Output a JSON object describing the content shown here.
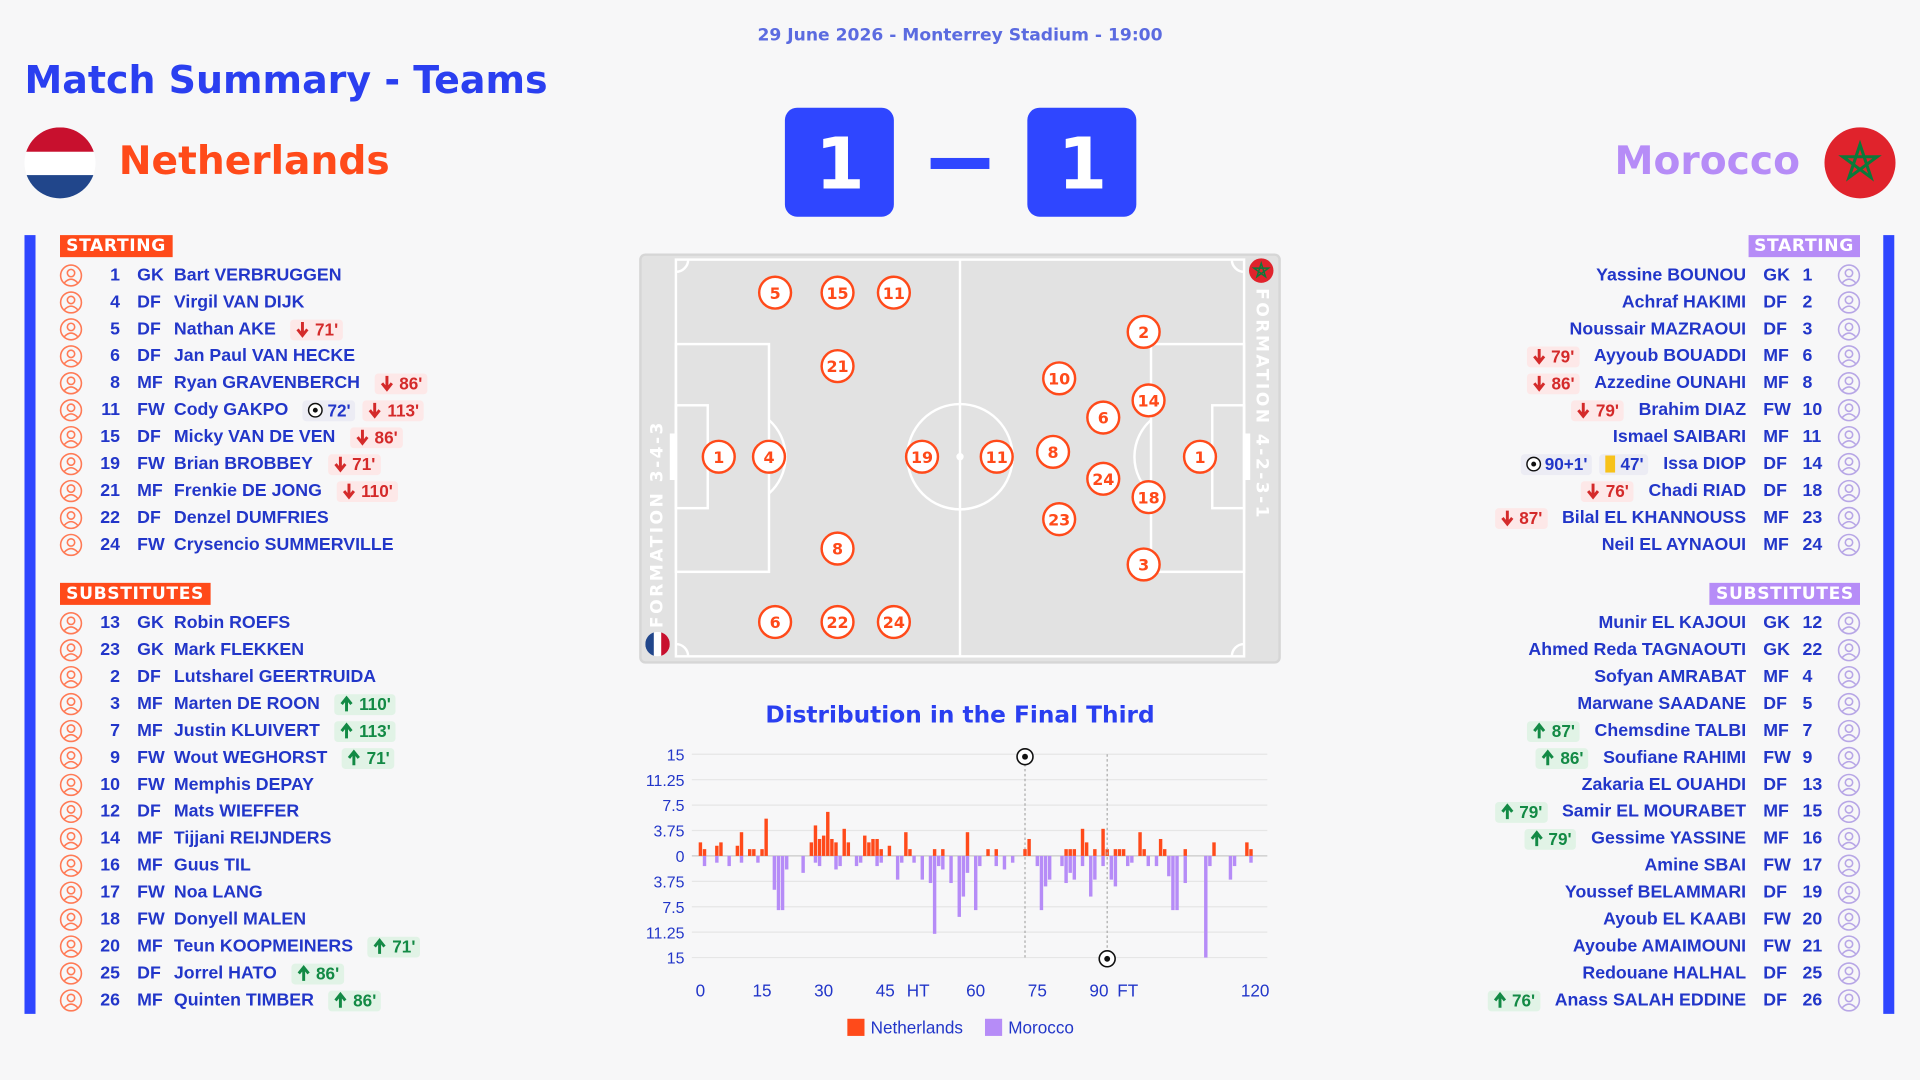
{
  "header": {
    "date": "29 June 2026 - Monterrey Stadium - 19:00",
    "title": "Match Summary - Teams"
  },
  "score": {
    "home": 1,
    "away": 1
  },
  "teams": [
    {
      "name": "Netherlands",
      "color": "#ff4a1a",
      "starting_label": "STARTING",
      "substitutes_label": "SUBSTITUTES",
      "formation": "FORMATION 3-4-3",
      "pitch": [
        1,
        4,
        5,
        15,
        11,
        21,
        19,
        8,
        6,
        22,
        24
      ],
      "starting": [
        {
          "number": 1,
          "position": "GK",
          "name": "Bart VERBRUGGEN",
          "events": []
        },
        {
          "number": 4,
          "position": "DF",
          "name": "Virgil VAN DIJK",
          "events": []
        },
        {
          "number": 5,
          "position": "DF",
          "name": "Nathan AKE",
          "events": [
            {
              "type": "off",
              "minute": "71'"
            }
          ]
        },
        {
          "number": 6,
          "position": "DF",
          "name": "Jan Paul VAN HECKE",
          "events": []
        },
        {
          "number": 8,
          "position": "MF",
          "name": "Ryan GRAVENBERCH",
          "events": [
            {
              "type": "off",
              "minute": "86'"
            }
          ]
        },
        {
          "number": 11,
          "position": "FW",
          "name": "Cody GAKPO",
          "events": [
            {
              "type": "goal",
              "minute": "72'"
            },
            {
              "type": "off",
              "minute": "113'"
            }
          ]
        },
        {
          "number": 15,
          "position": "DF",
          "name": "Micky VAN DE VEN",
          "events": [
            {
              "type": "off",
              "minute": "86'"
            }
          ]
        },
        {
          "number": 19,
          "position": "FW",
          "name": "Brian BROBBEY",
          "events": [
            {
              "type": "off",
              "minute": "71'"
            }
          ]
        },
        {
          "number": 21,
          "position": "MF",
          "name": "Frenkie DE JONG",
          "events": [
            {
              "type": "off",
              "minute": "110'"
            }
          ]
        },
        {
          "number": 22,
          "position": "DF",
          "name": "Denzel DUMFRIES",
          "events": []
        },
        {
          "number": 24,
          "position": "FW",
          "name": "Crysencio SUMMERVILLE",
          "events": []
        }
      ],
      "substitutes": [
        {
          "number": 13,
          "position": "GK",
          "name": "Robin ROEFS",
          "events": []
        },
        {
          "number": 23,
          "position": "GK",
          "name": "Mark FLEKKEN",
          "events": []
        },
        {
          "number": 2,
          "position": "DF",
          "name": "Lutsharel GEERTRUIDA",
          "events": []
        },
        {
          "number": 3,
          "position": "MF",
          "name": "Marten DE ROON",
          "events": [
            {
              "type": "on",
              "minute": "110'"
            }
          ]
        },
        {
          "number": 7,
          "position": "MF",
          "name": "Justin KLUIVERT",
          "events": [
            {
              "type": "on",
              "minute": "113'"
            }
          ]
        },
        {
          "number": 9,
          "position": "FW",
          "name": "Wout WEGHORST",
          "events": [
            {
              "type": "on",
              "minute": "71'"
            }
          ]
        },
        {
          "number": 10,
          "position": "FW",
          "name": "Memphis DEPAY",
          "events": []
        },
        {
          "number": 12,
          "position": "DF",
          "name": "Mats WIEFFER",
          "events": []
        },
        {
          "number": 14,
          "position": "MF",
          "name": "Tijjani REIJNDERS",
          "events": []
        },
        {
          "number": 16,
          "position": "MF",
          "name": "Guus TIL",
          "events": []
        },
        {
          "number": 17,
          "position": "FW",
          "name": "Noa LANG",
          "events": []
        },
        {
          "number": 18,
          "position": "FW",
          "name": "Donyell MALEN",
          "events": []
        },
        {
          "number": 20,
          "position": "MF",
          "name": "Teun KOOPMEINERS",
          "events": [
            {
              "type": "on",
              "minute": "71'"
            }
          ]
        },
        {
          "number": 25,
          "position": "DF",
          "name": "Jorrel HATO",
          "events": [
            {
              "type": "on",
              "minute": "86'"
            }
          ]
        },
        {
          "number": 26,
          "position": "MF",
          "name": "Quinten TIMBER",
          "events": [
            {
              "type": "on",
              "minute": "86'"
            }
          ]
        }
      ]
    },
    {
      "name": "Morocco",
      "color": "#b68cf7",
      "starting_label": "STARTING",
      "substitutes_label": "SUBSTITUTES",
      "formation": "FORMATION 4-2-3-1",
      "pitch": [
        11,
        10,
        8,
        23,
        6,
        24,
        14,
        18,
        2,
        3,
        1
      ],
      "starting": [
        {
          "number": 1,
          "position": "GK",
          "name": "Yassine BOUNOU",
          "events": []
        },
        {
          "number": 2,
          "position": "DF",
          "name": "Achraf HAKIMI",
          "events": []
        },
        {
          "number": 3,
          "position": "DF",
          "name": "Noussair MAZRAOUI",
          "events": []
        },
        {
          "number": 6,
          "position": "MF",
          "name": "Ayyoub BOUADDI",
          "events": [
            {
              "type": "off",
              "minute": "79'"
            }
          ]
        },
        {
          "number": 8,
          "position": "MF",
          "name": "Azzedine OUNAHI",
          "events": [
            {
              "type": "off",
              "minute": "86'"
            }
          ]
        },
        {
          "number": 10,
          "position": "FW",
          "name": "Brahim DIAZ",
          "events": [
            {
              "type": "off",
              "minute": "79'"
            }
          ]
        },
        {
          "number": 11,
          "position": "MF",
          "name": "Ismael SAIBARI",
          "events": []
        },
        {
          "number": 14,
          "position": "DF",
          "name": "Issa DIOP",
          "events": [
            {
              "type": "goal",
              "minute": "90+1'"
            },
            {
              "type": "yellow_card",
              "minute": "47'"
            }
          ]
        },
        {
          "number": 18,
          "position": "DF",
          "name": "Chadi RIAD",
          "events": [
            {
              "type": "off",
              "minute": "76'"
            }
          ]
        },
        {
          "number": 23,
          "position": "MF",
          "name": "Bilal EL KHANNOUSS",
          "events": [
            {
              "type": "off",
              "minute": "87'"
            }
          ]
        },
        {
          "number": 24,
          "position": "MF",
          "name": "Neil EL AYNAOUI",
          "events": []
        }
      ],
      "substitutes": [
        {
          "number": 12,
          "position": "GK",
          "name": "Munir EL KAJOUI",
          "events": []
        },
        {
          "number": 22,
          "position": "GK",
          "name": "Ahmed Reda TAGNAOUTI",
          "events": []
        },
        {
          "number": 4,
          "position": "MF",
          "name": "Sofyan AMRABAT",
          "events": []
        },
        {
          "number": 5,
          "position": "DF",
          "name": "Marwane SAADANE",
          "events": []
        },
        {
          "number": 7,
          "position": "MF",
          "name": "Chemsdine TALBI",
          "events": [
            {
              "type": "on",
              "minute": "87'"
            }
          ]
        },
        {
          "number": 9,
          "position": "FW",
          "name": "Soufiane RAHIMI",
          "events": [
            {
              "type": "on",
              "minute": "86'"
            }
          ]
        },
        {
          "number": 13,
          "position": "DF",
          "name": "Zakaria EL OUAHDI",
          "events": []
        },
        {
          "number": 15,
          "position": "MF",
          "name": "Samir EL MOURABET",
          "events": [
            {
              "type": "on",
              "minute": "79'"
            }
          ]
        },
        {
          "number": 16,
          "position": "MF",
          "name": "Gessime YASSINE",
          "events": [
            {
              "type": "on",
              "minute": "79'"
            }
          ]
        },
        {
          "number": 17,
          "position": "FW",
          "name": "Amine SBAI",
          "events": []
        },
        {
          "number": 19,
          "position": "DF",
          "name": "Youssef BELAMMARI",
          "events": []
        },
        {
          "number": 20,
          "position": "FW",
          "name": "Ayoub EL KAABI",
          "events": []
        },
        {
          "number": 21,
          "position": "FW",
          "name": "Ayoube AMAIMOUNI",
          "events": []
        },
        {
          "number": 25,
          "position": "DF",
          "name": "Redouane HALHAL",
          "events": []
        },
        {
          "number": 26,
          "position": "DF",
          "name": "Anass SALAH EDDINE",
          "events": [
            {
              "type": "on",
              "minute": "76'"
            }
          ]
        }
      ]
    }
  ],
  "chart_data": {
    "type": "bar",
    "title": "Distribution in the Final Third",
    "xlim": [
      0,
      135
    ],
    "xticks": [
      0,
      15,
      30,
      45,
      {
        "value": 53,
        "label": "HT"
      },
      {
        "value": 67,
        "label": "60"
      },
      {
        "value": 82,
        "label": "75"
      },
      {
        "value": 97,
        "label": "90"
      },
      {
        "value": 104,
        "label": "FT"
      },
      {
        "value": 135,
        "label": "120"
      }
    ],
    "ylim": [
      -15,
      15
    ],
    "yticks": [
      15,
      11.25,
      7.5,
      3.75,
      0,
      {
        "value": -3.75,
        "label": "3.75"
      },
      {
        "value": -7.5,
        "label": "7.5"
      },
      {
        "value": -11.25,
        "label": "11.25"
      },
      {
        "value": -15,
        "label": "15"
      }
    ],
    "grid": true,
    "legend": "bottom",
    "series": [
      {
        "name": "Netherlands",
        "color": "#ff4a1a",
        "goals": [
          79
        ],
        "x": [
          0,
          1,
          4,
          5,
          9,
          10,
          12,
          13,
          15,
          16,
          27,
          28,
          29,
          30,
          31,
          32,
          33,
          35,
          36,
          40,
          41,
          42,
          43,
          44,
          46,
          50,
          51,
          57,
          59,
          65,
          70,
          72,
          79,
          80,
          89,
          90,
          91,
          93,
          94,
          96,
          98,
          99,
          101,
          102,
          103,
          107,
          108,
          112,
          113,
          118,
          125,
          133,
          134
        ],
        "values": [
          2,
          1,
          1.5,
          2,
          1.5,
          3.5,
          1,
          1,
          1,
          5.5,
          2,
          4.5,
          2.5,
          3,
          6.5,
          2.5,
          2,
          4,
          2,
          3,
          2,
          2.5,
          2.5,
          1,
          1.5,
          3.5,
          1,
          1,
          1,
          3.5,
          1,
          1,
          1,
          2.5,
          1,
          1,
          1,
          4,
          2,
          1,
          4,
          1,
          1,
          1,
          1,
          3.5,
          1,
          2.5,
          1,
          1,
          2,
          2,
          1
        ]
      },
      {
        "name": "Morocco",
        "color": "#b68cf7",
        "goals": [
          99
        ],
        "x": [
          1,
          4,
          7,
          10,
          14,
          18,
          19,
          20,
          21,
          25,
          28,
          29,
          33,
          34,
          38,
          39,
          43,
          44,
          48,
          49,
          52,
          54,
          56,
          57,
          58,
          59,
          61,
          63,
          64,
          65,
          67,
          68,
          72,
          74,
          76,
          82,
          83,
          84,
          85,
          88,
          89,
          90,
          91,
          93,
          95,
          96,
          98,
          100,
          101,
          104,
          105,
          109,
          111,
          114,
          115,
          116,
          118,
          123,
          124,
          129,
          130,
          134
        ],
        "values": [
          -1.5,
          -1,
          -1.5,
          -1,
          -1,
          -5,
          -8,
          -8,
          -2,
          -2.5,
          -1,
          -1.5,
          -2,
          -1.5,
          -1.5,
          -1,
          -1.5,
          -1,
          -3.5,
          -1,
          -1,
          -3.5,
          -4,
          -11.5,
          -1.5,
          -2,
          -4,
          -9,
          -6,
          -2.5,
          -8,
          -1.5,
          -1.5,
          -2,
          -1,
          -1.5,
          -8,
          -4.5,
          -3.5,
          -1.5,
          -4,
          -2.5,
          -3.5,
          -1.5,
          -6,
          -3.5,
          -1.5,
          -3.5,
          -4.5,
          -1.5,
          -1,
          -1.5,
          -1.5,
          -3,
          -8,
          -8,
          -4,
          -15,
          -1.5,
          -3.5,
          -1.5,
          -1
        ]
      }
    ]
  }
}
